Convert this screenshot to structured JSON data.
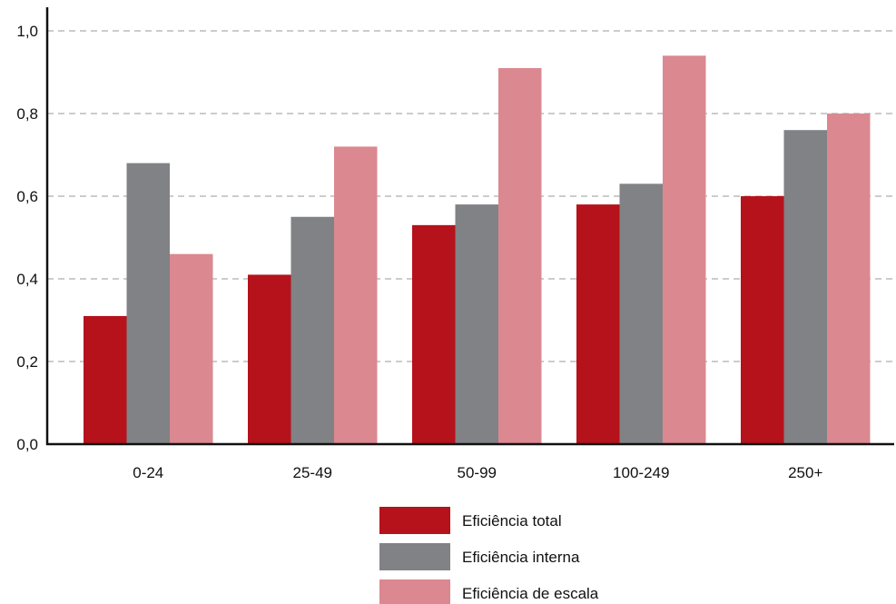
{
  "chart_data": {
    "type": "bar",
    "title": "",
    "xlabel": "",
    "ylabel": "",
    "ylim": [
      0,
      1.0
    ],
    "yticks": [
      "0,0",
      "0,2",
      "0,4",
      "0,6",
      "0,8",
      "1,0"
    ],
    "ytick_values": [
      0,
      0.2,
      0.4,
      0.6,
      0.8,
      1.0
    ],
    "categories": [
      "0-24",
      "25-49",
      "50-99",
      "100-249",
      "250+"
    ],
    "series": [
      {
        "name": "Eficiência total",
        "color": "#b5121b",
        "values": [
          0.31,
          0.41,
          0.53,
          0.58,
          0.6
        ]
      },
      {
        "name": "Eficiência interna",
        "color": "#808285",
        "values": [
          0.68,
          0.55,
          0.58,
          0.63,
          0.76
        ]
      },
      {
        "name": "Eficiência de escala",
        "color": "#db8890",
        "values": [
          0.46,
          0.72,
          0.91,
          0.94,
          0.8
        ]
      }
    ],
    "grid": true,
    "legend_position": "bottom-center"
  }
}
